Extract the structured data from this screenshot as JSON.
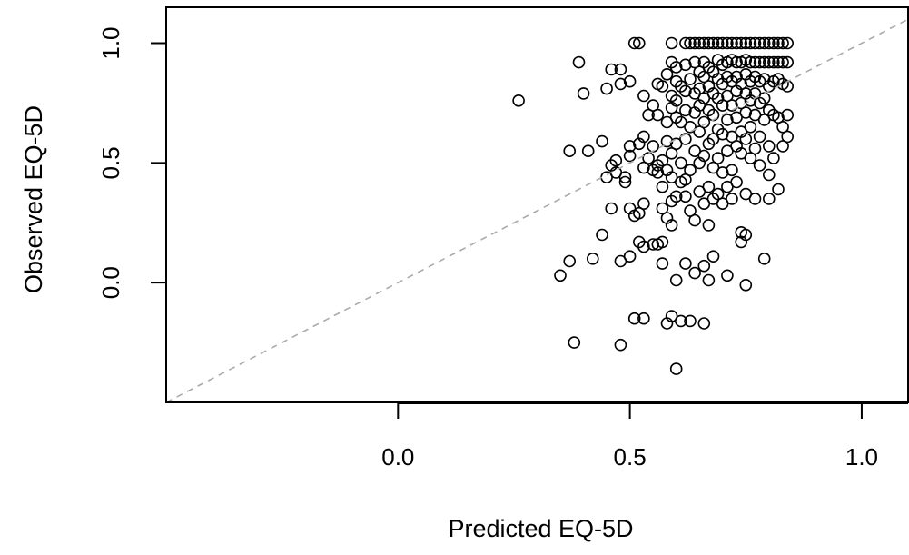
{
  "chart_data": {
    "type": "scatter",
    "title": "",
    "xlabel": "Predicted EQ-5D",
    "ylabel": "Observed EQ-5D",
    "xlim": [
      -0.5,
      1.1
    ],
    "ylim": [
      -0.5,
      1.15
    ],
    "x_ticks": [
      0.0,
      0.5,
      1.0
    ],
    "x_tick_labels": [
      "0.0",
      "0.5",
      "1.0"
    ],
    "y_ticks": [
      0.0,
      0.5,
      1.0
    ],
    "y_tick_labels": [
      "0.0",
      "0.5",
      "1.0"
    ],
    "grid": false,
    "reference_line": {
      "type": "identity",
      "style": "dashed",
      "color": "#aaaaaa"
    },
    "marker": {
      "shape": "open-circle",
      "color": "#000000"
    },
    "series": [
      {
        "points": [
          [
            0.26,
            0.76
          ],
          [
            0.35,
            0.03
          ],
          [
            0.37,
            0.09
          ],
          [
            0.37,
            0.55
          ],
          [
            0.38,
            -0.25
          ],
          [
            0.39,
            0.92
          ],
          [
            0.4,
            0.79
          ],
          [
            0.41,
            0.55
          ],
          [
            0.42,
            0.1
          ],
          [
            0.44,
            0.59
          ],
          [
            0.44,
            0.2
          ],
          [
            0.45,
            0.81
          ],
          [
            0.45,
            0.44
          ],
          [
            0.46,
            0.89
          ],
          [
            0.46,
            0.49
          ],
          [
            0.46,
            0.31
          ],
          [
            0.47,
            0.51
          ],
          [
            0.47,
            0.46
          ],
          [
            0.48,
            0.89
          ],
          [
            0.48,
            0.83
          ],
          [
            0.48,
            -0.26
          ],
          [
            0.48,
            0.09
          ],
          [
            0.49,
            0.44
          ],
          [
            0.49,
            0.42
          ],
          [
            0.5,
            0.84
          ],
          [
            0.5,
            0.57
          ],
          [
            0.5,
            0.53
          ],
          [
            0.5,
            0.11
          ],
          [
            0.5,
            0.31
          ],
          [
            0.51,
            1.0
          ],
          [
            0.51,
            0.28
          ],
          [
            0.51,
            -0.15
          ],
          [
            0.52,
            1.0
          ],
          [
            0.52,
            0.58
          ],
          [
            0.52,
            0.29
          ],
          [
            0.52,
            0.17
          ],
          [
            0.53,
            0.78
          ],
          [
            0.53,
            0.61
          ],
          [
            0.53,
            0.48
          ],
          [
            0.53,
            0.33
          ],
          [
            0.53,
            0.15
          ],
          [
            0.53,
            -0.15
          ],
          [
            0.54,
            0.7
          ],
          [
            0.54,
            0.52
          ],
          [
            0.55,
            0.74
          ],
          [
            0.55,
            0.57
          ],
          [
            0.55,
            0.47
          ],
          [
            0.55,
            0.16
          ],
          [
            0.56,
            0.83
          ],
          [
            0.56,
            0.7
          ],
          [
            0.56,
            0.49
          ],
          [
            0.56,
            0.46
          ],
          [
            0.56,
            0.16
          ],
          [
            0.57,
            0.82
          ],
          [
            0.57,
            0.51
          ],
          [
            0.57,
            0.4
          ],
          [
            0.57,
            0.31
          ],
          [
            0.57,
            0.17
          ],
          [
            0.57,
            0.08
          ],
          [
            0.58,
            0.87
          ],
          [
            0.58,
            0.67
          ],
          [
            0.58,
            0.59
          ],
          [
            0.58,
            0.47
          ],
          [
            0.58,
            0.27
          ],
          [
            0.58,
            -0.17
          ],
          [
            0.59,
            1.0
          ],
          [
            0.59,
            0.92
          ],
          [
            0.59,
            0.78
          ],
          [
            0.59,
            0.73
          ],
          [
            0.59,
            0.54
          ],
          [
            0.59,
            0.44
          ],
          [
            0.59,
            0.34
          ],
          [
            0.59,
            0.24
          ],
          [
            0.59,
            -0.14
          ],
          [
            0.6,
            0.9
          ],
          [
            0.6,
            0.84
          ],
          [
            0.6,
            0.76
          ],
          [
            0.6,
            0.69
          ],
          [
            0.6,
            0.58
          ],
          [
            0.6,
            0.36
          ],
          [
            0.6,
            0.01
          ],
          [
            0.6,
            -0.36
          ],
          [
            0.61,
            0.82
          ],
          [
            0.61,
            0.67
          ],
          [
            0.61,
            0.5
          ],
          [
            0.61,
            0.42
          ],
          [
            0.61,
            -0.16
          ],
          [
            0.62,
            1.0
          ],
          [
            0.62,
            0.91
          ],
          [
            0.62,
            0.8
          ],
          [
            0.62,
            0.72
          ],
          [
            0.62,
            0.6
          ],
          [
            0.62,
            0.43
          ],
          [
            0.62,
            0.36
          ],
          [
            0.62,
            0.08
          ],
          [
            0.63,
            1.0
          ],
          [
            0.63,
            0.85
          ],
          [
            0.63,
            0.65
          ],
          [
            0.63,
            0.47
          ],
          [
            0.63,
            0.3
          ],
          [
            0.63,
            -0.16
          ],
          [
            0.64,
            1.0
          ],
          [
            0.64,
            0.92
          ],
          [
            0.64,
            0.79
          ],
          [
            0.64,
            0.71
          ],
          [
            0.64,
            0.55
          ],
          [
            0.64,
            0.26
          ],
          [
            0.64,
            0.04
          ],
          [
            0.65,
            1.0
          ],
          [
            0.65,
            0.88
          ],
          [
            0.65,
            0.81
          ],
          [
            0.65,
            0.74
          ],
          [
            0.65,
            0.63
          ],
          [
            0.65,
            0.5
          ],
          [
            0.65,
            0.38
          ],
          [
            0.66,
            1.0
          ],
          [
            0.66,
            0.92
          ],
          [
            0.66,
            0.86
          ],
          [
            0.66,
            0.77
          ],
          [
            0.66,
            0.67
          ],
          [
            0.66,
            0.53
          ],
          [
            0.66,
            0.33
          ],
          [
            0.66,
            0.07
          ],
          [
            0.66,
            -0.17
          ],
          [
            0.67,
            1.0
          ],
          [
            0.67,
            0.9
          ],
          [
            0.67,
            0.82
          ],
          [
            0.67,
            0.72
          ],
          [
            0.67,
            0.58
          ],
          [
            0.67,
            0.4
          ],
          [
            0.67,
            0.24
          ],
          [
            0.67,
            0.01
          ],
          [
            0.68,
            1.0
          ],
          [
            0.68,
            0.88
          ],
          [
            0.68,
            0.79
          ],
          [
            0.68,
            0.7
          ],
          [
            0.68,
            0.6
          ],
          [
            0.68,
            0.48
          ],
          [
            0.68,
            0.35
          ],
          [
            0.68,
            0.11
          ],
          [
            0.69,
            1.0
          ],
          [
            0.69,
            0.93
          ],
          [
            0.69,
            0.85
          ],
          [
            0.69,
            0.77
          ],
          [
            0.69,
            0.64
          ],
          [
            0.69,
            0.52
          ],
          [
            0.69,
            0.37
          ],
          [
            0.7,
            1.0
          ],
          [
            0.7,
            0.91
          ],
          [
            0.7,
            0.83
          ],
          [
            0.7,
            0.74
          ],
          [
            0.7,
            0.62
          ],
          [
            0.7,
            0.46
          ],
          [
            0.7,
            0.33
          ],
          [
            0.71,
            1.0
          ],
          [
            0.71,
            0.92
          ],
          [
            0.71,
            0.86
          ],
          [
            0.71,
            0.78
          ],
          [
            0.71,
            0.68
          ],
          [
            0.71,
            0.55
          ],
          [
            0.71,
            0.4
          ],
          [
            0.71,
            0.03
          ],
          [
            0.72,
            1.0
          ],
          [
            0.72,
            0.93
          ],
          [
            0.72,
            0.84
          ],
          [
            0.72,
            0.74
          ],
          [
            0.72,
            0.61
          ],
          [
            0.72,
            0.47
          ],
          [
            0.72,
            0.35
          ],
          [
            0.73,
            1.0
          ],
          [
            0.73,
            0.92
          ],
          [
            0.73,
            0.86
          ],
          [
            0.73,
            0.8
          ],
          [
            0.73,
            0.69
          ],
          [
            0.73,
            0.57
          ],
          [
            0.73,
            0.42
          ],
          [
            0.74,
            1.0
          ],
          [
            0.74,
            0.92
          ],
          [
            0.74,
            0.83
          ],
          [
            0.74,
            0.75
          ],
          [
            0.74,
            0.63
          ],
          [
            0.74,
            0.54
          ],
          [
            0.74,
            0.21
          ],
          [
            0.74,
            0.17
          ],
          [
            0.75,
            1.0
          ],
          [
            0.75,
            0.93
          ],
          [
            0.75,
            0.87
          ],
          [
            0.75,
            0.79
          ],
          [
            0.75,
            0.71
          ],
          [
            0.75,
            0.6
          ],
          [
            0.75,
            0.37
          ],
          [
            0.75,
            0.2
          ],
          [
            0.75,
            -0.01
          ],
          [
            0.76,
            1.0
          ],
          [
            0.76,
            0.92
          ],
          [
            0.76,
            0.84
          ],
          [
            0.76,
            0.76
          ],
          [
            0.76,
            0.65
          ],
          [
            0.76,
            0.52
          ],
          [
            0.77,
            1.0
          ],
          [
            0.77,
            0.92
          ],
          [
            0.77,
            0.86
          ],
          [
            0.77,
            0.79
          ],
          [
            0.77,
            0.7
          ],
          [
            0.77,
            0.56
          ],
          [
            0.77,
            0.35
          ],
          [
            0.78,
            1.0
          ],
          [
            0.78,
            0.92
          ],
          [
            0.78,
            0.84
          ],
          [
            0.78,
            0.75
          ],
          [
            0.78,
            0.61
          ],
          [
            0.78,
            0.49
          ],
          [
            0.79,
            1.0
          ],
          [
            0.79,
            0.92
          ],
          [
            0.79,
            0.85
          ],
          [
            0.79,
            0.77
          ],
          [
            0.79,
            0.68
          ],
          [
            0.79,
            0.1
          ],
          [
            0.8,
            1.0
          ],
          [
            0.8,
            0.92
          ],
          [
            0.8,
            0.82
          ],
          [
            0.8,
            0.72
          ],
          [
            0.8,
            0.57
          ],
          [
            0.8,
            0.45
          ],
          [
            0.8,
            0.35
          ],
          [
            0.81,
            1.0
          ],
          [
            0.81,
            0.92
          ],
          [
            0.81,
            0.84
          ],
          [
            0.81,
            0.7
          ],
          [
            0.81,
            0.52
          ],
          [
            0.82,
            1.0
          ],
          [
            0.82,
            0.92
          ],
          [
            0.82,
            0.85
          ],
          [
            0.82,
            0.69
          ],
          [
            0.82,
            0.39
          ],
          [
            0.83,
            1.0
          ],
          [
            0.83,
            0.92
          ],
          [
            0.83,
            0.83
          ],
          [
            0.83,
            0.65
          ],
          [
            0.83,
            0.57
          ],
          [
            0.84,
            1.0
          ],
          [
            0.84,
            0.92
          ],
          [
            0.84,
            0.82
          ],
          [
            0.84,
            0.7
          ],
          [
            0.84,
            0.61
          ]
        ]
      }
    ]
  }
}
